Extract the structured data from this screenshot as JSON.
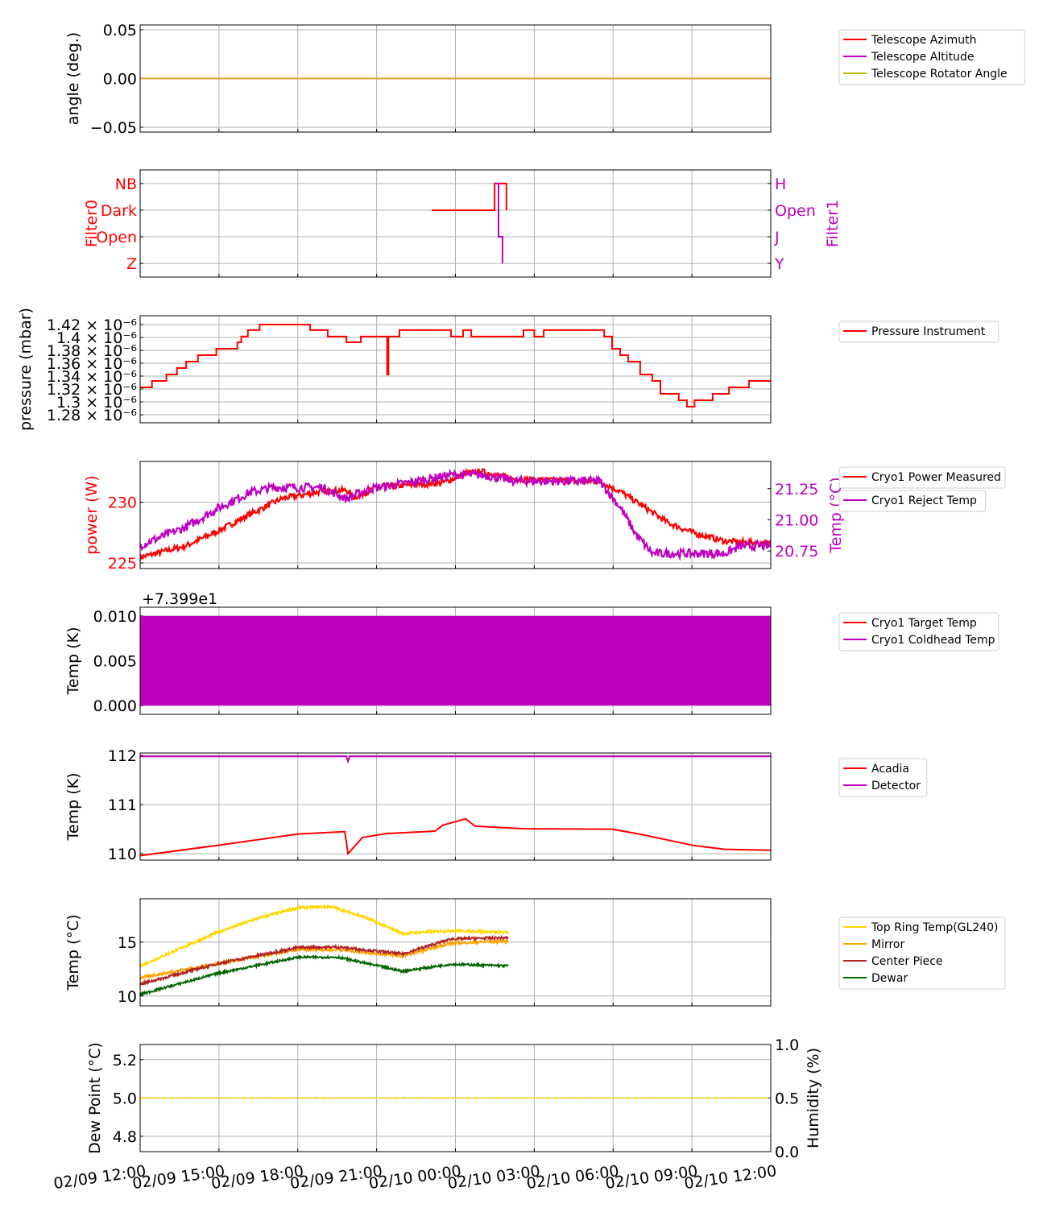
{
  "x_axis": {
    "range_hours": [
      0,
      24
    ],
    "ticks": [
      {
        "h": 0,
        "label": "02/09 12:00"
      },
      {
        "h": 3,
        "label": "02/09 15:00"
      },
      {
        "h": 6,
        "label": "02/09 18:00"
      },
      {
        "h": 9,
        "label": "02/09 21:00"
      },
      {
        "h": 12,
        "label": "02/10 00:00"
      },
      {
        "h": 15,
        "label": "02/10 03:00"
      },
      {
        "h": 18,
        "label": "02/10 06:00"
      },
      {
        "h": 21,
        "label": "02/10 09:00"
      },
      {
        "h": 24,
        "label": "02/10 12:00"
      }
    ]
  },
  "chart_data": [
    {
      "type": "line",
      "ylabel": "angle (deg.)",
      "ylim": [
        -0.055,
        0.055
      ],
      "yticks": [
        {
          "v": 0.05,
          "label": "0.05"
        },
        {
          "v": 0.0,
          "label": "0.00"
        },
        {
          "v": -0.05,
          "label": "−0.05"
        }
      ],
      "series": [
        {
          "name": "Telescope Azimuth",
          "color": "#ff0000",
          "points": [
            [
              0,
              0
            ],
            [
              24,
              0
            ]
          ]
        },
        {
          "name": "Telescope Altitude",
          "color": "#bf00bf",
          "points": [
            [
              0,
              0
            ],
            [
              24,
              0
            ]
          ]
        },
        {
          "name": "Telescope Rotator Angle",
          "color": "#bfbf00",
          "points": [
            [
              0,
              0
            ],
            [
              24,
              0
            ]
          ]
        },
        {
          "name": "",
          "color": "#e0a040",
          "points": [
            [
              0,
              0
            ],
            [
              24,
              0
            ]
          ],
          "hidden_legend": true
        }
      ]
    },
    {
      "type": "line",
      "ylabel": "Filter0",
      "ylabel_color": "#ff0000",
      "ylim": [
        -0.51,
        3.51
      ],
      "yticks": [
        {
          "v": 0,
          "label": "Z"
        },
        {
          "v": 1,
          "label": "Open"
        },
        {
          "v": 2,
          "label": "Dark"
        },
        {
          "v": 3,
          "label": "NB"
        }
      ],
      "ytick_color": "#ff0000",
      "right_axis": {
        "ylabel": "Filter1",
        "color": "#bf00bf",
        "ylim": [
          -0.51,
          3.51
        ],
        "yticks": [
          {
            "v": 0,
            "label": "Y"
          },
          {
            "v": 1,
            "label": "J"
          },
          {
            "v": 2,
            "label": "Open"
          },
          {
            "v": 3,
            "label": "H"
          }
        ]
      },
      "series": [
        {
          "name": "Filter0",
          "color": "#ff0000",
          "step": true,
          "points": [
            [
              11.1,
              2
            ],
            [
              13.49,
              3
            ],
            [
              13.94,
              2
            ],
            [
              13.94,
              2
            ]
          ]
        },
        {
          "name": "Filter1",
          "color": "#bf00bf",
          "step": true,
          "axis": "right",
          "points": [
            [
              13.49,
              3
            ],
            [
              13.64,
              1
            ],
            [
              13.79,
              0
            ],
            [
              13.79,
              0
            ]
          ]
        }
      ],
      "no_legend": true
    },
    {
      "type": "line",
      "ylabel": "pressure (mbar)",
      "ylim": [
        1.2675,
        1.4337
      ],
      "yticks": [
        {
          "v": 1.28,
          "label": "1.28 × 10⁻⁶"
        },
        {
          "v": 1.3,
          "label": "1.3 × 10⁻⁶"
        },
        {
          "v": 1.32,
          "label": "1.32 × 10⁻⁶"
        },
        {
          "v": 1.34,
          "label": "1.34 × 10⁻⁶"
        },
        {
          "v": 1.36,
          "label": "1.36 × 10⁻⁶"
        },
        {
          "v": 1.38,
          "label": "1.38 × 10⁻⁶"
        },
        {
          "v": 1.4,
          "label": "1.4 × 10⁻⁶"
        },
        {
          "v": 1.42,
          "label": "1.42 × 10⁻⁶"
        }
      ],
      "series": [
        {
          "name": "Pressure Instrument",
          "color": "#ff0000",
          "step": true,
          "points": [
            [
              0,
              1.3225
            ],
            [
              0.45,
              1.3325
            ],
            [
              1.0,
              1.3425
            ],
            [
              1.4,
              1.3525
            ],
            [
              1.75,
              1.3625
            ],
            [
              2.2,
              1.3725
            ],
            [
              2.9,
              1.3825
            ],
            [
              3.7,
              1.3925
            ],
            [
              3.85,
              1.4013
            ],
            [
              4.1,
              1.4113
            ],
            [
              4.55,
              1.42
            ],
            [
              6.47,
              1.4113
            ],
            [
              7.14,
              1.4013
            ],
            [
              7.85,
              1.3925
            ],
            [
              8.4,
              1.4013
            ],
            [
              9.3,
              1.4013
            ],
            [
              9.4,
              1.3425
            ],
            [
              9.45,
              1.4013
            ],
            [
              9.87,
              1.4113
            ],
            [
              11.83,
              1.4013
            ],
            [
              12.29,
              1.4113
            ],
            [
              12.6,
              1.4013
            ],
            [
              14.59,
              1.4113
            ],
            [
              15.0,
              1.4013
            ],
            [
              15.36,
              1.4113
            ],
            [
              17.66,
              1.4013
            ],
            [
              17.96,
              1.3825
            ],
            [
              18.27,
              1.3725
            ],
            [
              18.57,
              1.3625
            ],
            [
              19.03,
              1.3425
            ],
            [
              19.49,
              1.3325
            ],
            [
              19.8,
              1.3125
            ],
            [
              20.5,
              1.3025
            ],
            [
              20.81,
              1.2925
            ],
            [
              21.1,
              1.3025
            ],
            [
              21.79,
              1.3125
            ],
            [
              22.41,
              1.3225
            ],
            [
              23.17,
              1.3325
            ],
            [
              24,
              1.3325
            ]
          ]
        }
      ]
    },
    {
      "type": "line",
      "ylabel": "power (W)",
      "ylabel_color": "#ff0000",
      "ylim": [
        224.54,
        233.36
      ],
      "yticks": [
        {
          "v": 225,
          "label": "225"
        },
        {
          "v": 230,
          "label": "230"
        }
      ],
      "ytick_color": "#ff0000",
      "right_axis": {
        "ylabel": "Temp (°C)",
        "color": "#bf00bf",
        "ylim": [
          20.609,
          21.468
        ],
        "yticks": [
          {
            "v": 20.75,
            "label": "20.75"
          },
          {
            "v": 21.0,
            "label": "21.00"
          },
          {
            "v": 21.25,
            "label": "21.25"
          }
        ]
      },
      "series": [
        {
          "name": "Cryo1 Power Measured",
          "color": "#ff0000",
          "points": [
            [
              0,
              225.46
            ],
            [
              1.72,
              226.4
            ],
            [
              2.94,
              227.6
            ],
            [
              4.17,
              229.0
            ],
            [
              5.39,
              230.3
            ],
            [
              6.93,
              230.9
            ],
            [
              7.85,
              231.0
            ],
            [
              8.15,
              230.4
            ],
            [
              9.07,
              231.25
            ],
            [
              11.52,
              231.6
            ],
            [
              12.44,
              232.4
            ],
            [
              13.06,
              232.5
            ],
            [
              14.28,
              231.9
            ],
            [
              17.5,
              231.7
            ],
            [
              18.27,
              230.9
            ],
            [
              19.19,
              229.6
            ],
            [
              20.1,
              228.3
            ],
            [
              21.03,
              227.5
            ],
            [
              22.25,
              226.8
            ],
            [
              24,
              226.6
            ]
          ]
        },
        {
          "name": "Cryo1 Reject Temp",
          "color": "#bf00bf",
          "axis": "right",
          "points": [
            [
              0,
              20.795
            ],
            [
              1.72,
              20.94
            ],
            [
              2.94,
              21.09
            ],
            [
              4.17,
              21.22
            ],
            [
              5.09,
              21.26
            ],
            [
              6.93,
              21.26
            ],
            [
              7.85,
              21.17
            ],
            [
              8.77,
              21.25
            ],
            [
              9.99,
              21.29
            ],
            [
              11.83,
              21.36
            ],
            [
              13.06,
              21.36
            ],
            [
              14.28,
              21.31
            ],
            [
              17.5,
              21.31
            ],
            [
              18.27,
              21.1
            ],
            [
              18.88,
              20.88
            ],
            [
              19.49,
              20.73
            ],
            [
              22.25,
              20.73
            ],
            [
              22.87,
              20.79
            ],
            [
              24,
              20.79
            ]
          ]
        }
      ],
      "split_legend": true
    },
    {
      "type": "line",
      "ylabel": "Temp (K)",
      "offset_text": "+7.399e1",
      "ylim": [
        -0.00098,
        0.01098
      ],
      "yticks": [
        {
          "v": 0.0,
          "label": "0.000"
        },
        {
          "v": 0.005,
          "label": "0.005"
        },
        {
          "v": 0.01,
          "label": "0.010"
        }
      ],
      "series": [
        {
          "name": "Cryo1 Target Temp",
          "color": "#ff0000",
          "points": []
        },
        {
          "name": "Cryo1 Coldhead Temp",
          "color": "#bf00bf",
          "band": [
            0.0,
            0.01
          ],
          "points": [
            [
              0,
              0
            ],
            [
              24,
              0
            ]
          ]
        }
      ]
    },
    {
      "type": "line",
      "ylabel": "Temp (K)",
      "ylim": [
        109.87,
        112.05
      ],
      "yticks": [
        {
          "v": 110,
          "label": "110"
        },
        {
          "v": 111,
          "label": "111"
        },
        {
          "v": 112,
          "label": "112"
        }
      ],
      "series": [
        {
          "name": "Acadia",
          "color": "#ff0000",
          "points": [
            [
              0,
              109.96
            ],
            [
              2.94,
              110.17
            ],
            [
              6.01,
              110.4
            ],
            [
              7.79,
              110.45
            ],
            [
              7.91,
              110.0
            ],
            [
              8.46,
              110.33
            ],
            [
              9.38,
              110.41
            ],
            [
              11.22,
              110.46
            ],
            [
              11.52,
              110.58
            ],
            [
              12.38,
              110.71
            ],
            [
              12.75,
              110.56
            ],
            [
              14.59,
              110.51
            ],
            [
              17.96,
              110.5
            ],
            [
              19.19,
              110.38
            ],
            [
              21.03,
              110.17
            ],
            [
              22.25,
              110.09
            ],
            [
              24,
              110.07
            ]
          ]
        },
        {
          "name": "Detector",
          "color": "#bf00bf",
          "points": [
            [
              0,
              111.98
            ],
            [
              7.85,
              111.98
            ],
            [
              7.91,
              111.88
            ],
            [
              7.97,
              111.98
            ],
            [
              24,
              111.98
            ]
          ]
        }
      ]
    },
    {
      "type": "line",
      "ylabel": "Temp (°C)",
      "ylim": [
        9.09,
        19.02
      ],
      "yticks": [
        {
          "v": 10,
          "label": "10"
        },
        {
          "v": 15,
          "label": "15"
        }
      ],
      "series": [
        {
          "name": "Top Ring Temp(GL240)",
          "color": "#ffd700",
          "points": [
            [
              0,
              12.8
            ],
            [
              2.94,
              15.9
            ],
            [
              4.47,
              17.2
            ],
            [
              6.01,
              18.2
            ],
            [
              7.23,
              18.3
            ],
            [
              8.46,
              17.4
            ],
            [
              9.99,
              15.8
            ],
            [
              11.83,
              16.06
            ],
            [
              14.01,
              15.9
            ]
          ]
        },
        {
          "name": "Mirror",
          "color": "#ffa500",
          "points": [
            [
              0,
              11.7
            ],
            [
              2.94,
              13.0
            ],
            [
              6.01,
              14.3
            ],
            [
              7.54,
              14.3
            ],
            [
              9.99,
              13.7
            ],
            [
              11.83,
              14.9
            ],
            [
              14.01,
              15.1
            ]
          ]
        },
        {
          "name": "Center Piece",
          "color": "#b22222",
          "points": [
            [
              0,
              11.1
            ],
            [
              2.94,
              13.0
            ],
            [
              6.01,
              14.5
            ],
            [
              7.54,
              14.55
            ],
            [
              9.99,
              13.9
            ],
            [
              11.83,
              15.3
            ],
            [
              14.01,
              15.4
            ]
          ]
        },
        {
          "name": "Dewar",
          "color": "#006400",
          "points": [
            [
              0,
              10.15
            ],
            [
              2.94,
              12.1
            ],
            [
              6.01,
              13.6
            ],
            [
              7.54,
              13.6
            ],
            [
              9.99,
              12.3
            ],
            [
              11.83,
              12.95
            ],
            [
              14.01,
              12.8
            ]
          ]
        }
      ]
    },
    {
      "type": "line",
      "ylabel": "Dew Point (°C)",
      "ylim": [
        4.72,
        5.279
      ],
      "yticks": [
        {
          "v": 4.8,
          "label": "4.8"
        },
        {
          "v": 5.0,
          "label": "5.0"
        },
        {
          "v": 5.2,
          "label": "5.2"
        }
      ],
      "right_axis": {
        "ylabel": "Humidity (%)",
        "color": "#000000",
        "ylim": [
          0,
          1
        ],
        "yticks": [
          {
            "v": 0,
            "label": "0.0"
          },
          {
            "v": 0.5,
            "label": "0.5"
          },
          {
            "v": 1,
            "label": "1.0"
          }
        ]
      },
      "series": [
        {
          "name": "Dew Point",
          "color": "#ffd700",
          "dashed": true,
          "points": [
            [
              0,
              5.0
            ],
            [
              24,
              5.0
            ]
          ]
        }
      ],
      "no_legend": true
    }
  ]
}
